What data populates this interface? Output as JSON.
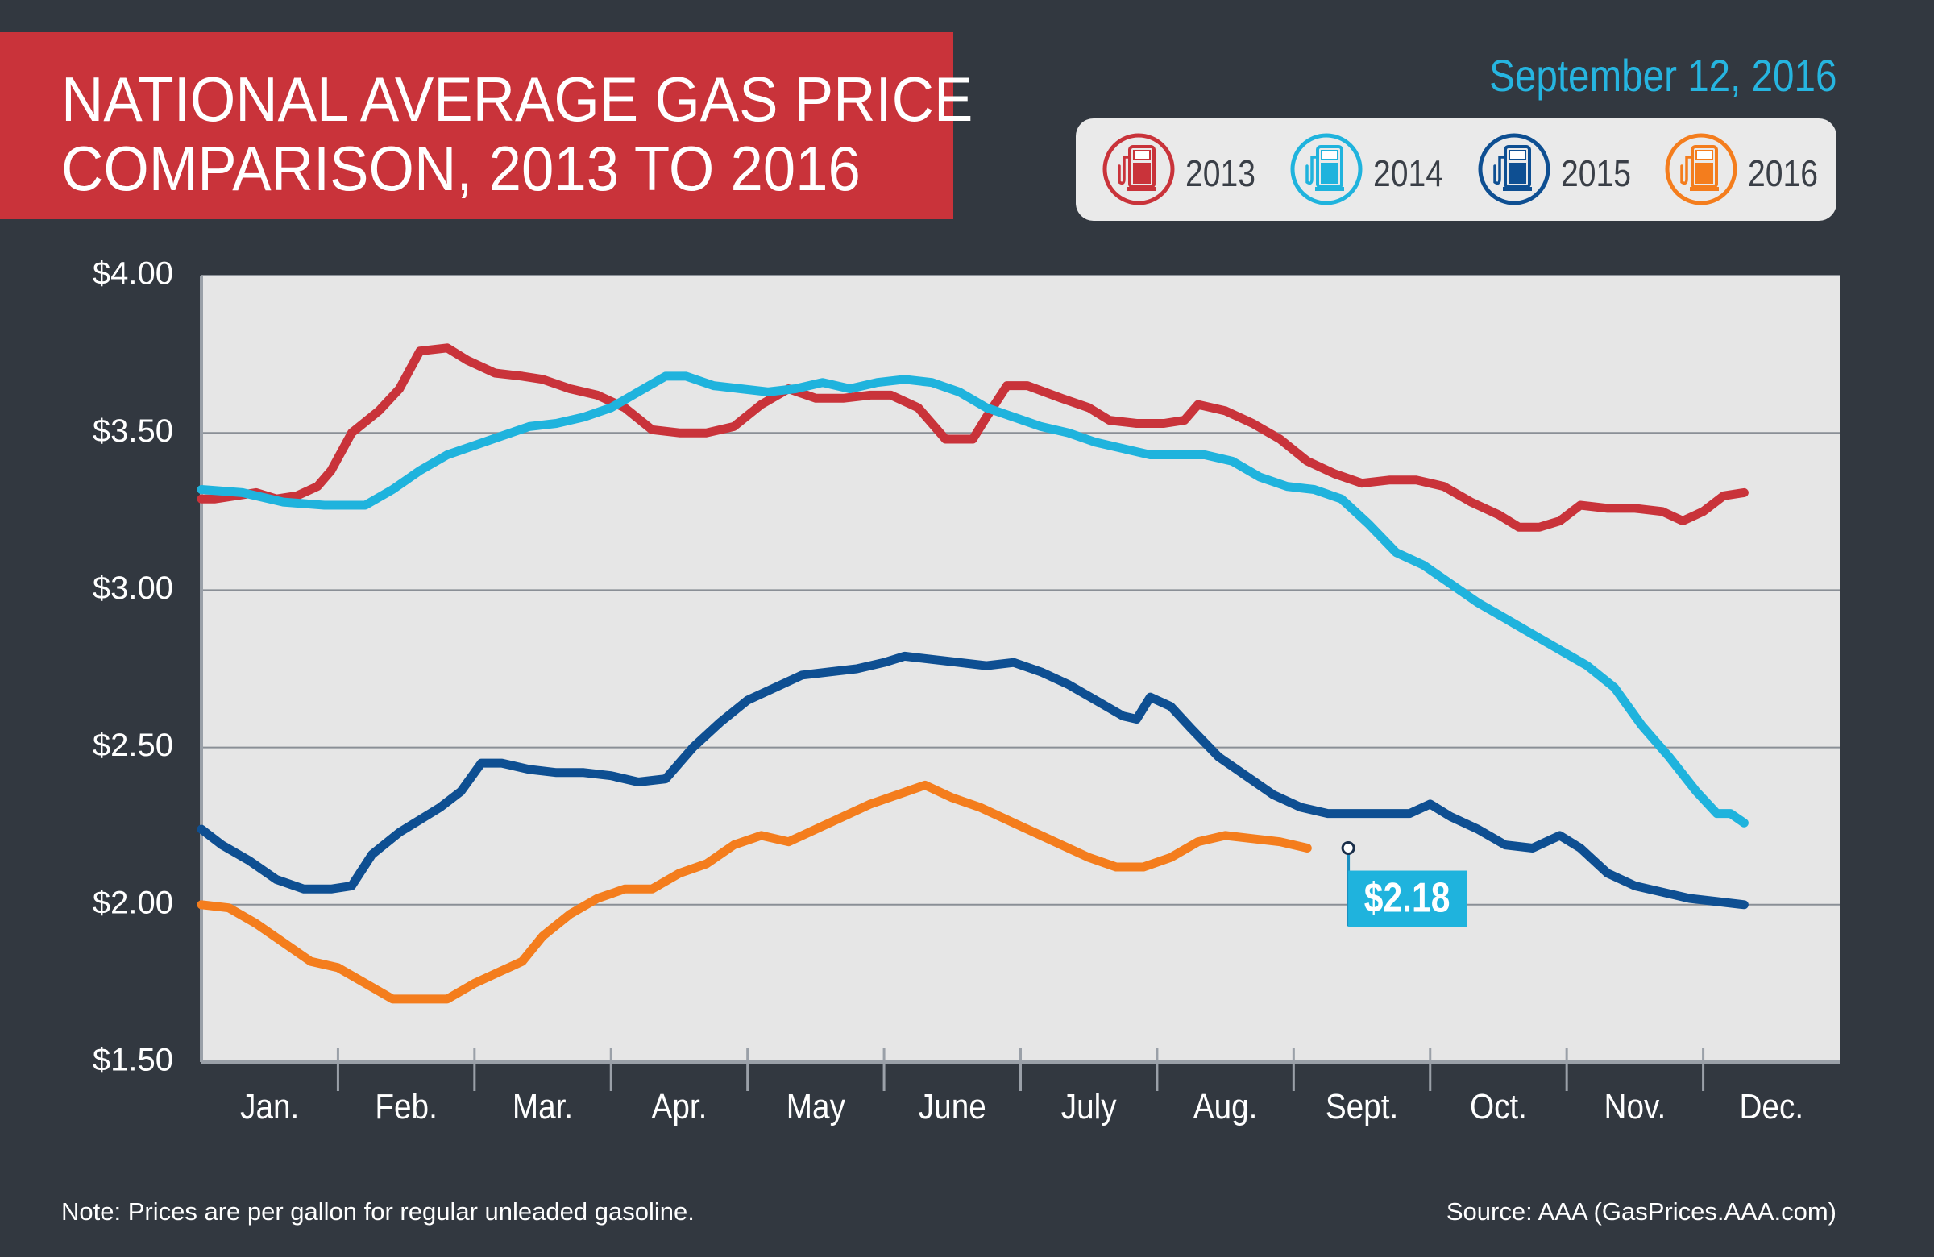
{
  "header": {
    "title_line1": "NATIONAL AVERAGE GAS PRICE",
    "title_line2": "COMPARISON, 2013 TO 2016",
    "date": "September 12, 2016"
  },
  "legend": [
    {
      "label": "2013",
      "icon": "gas-pump-icon",
      "color": "#c9333a"
    },
    {
      "label": "2014",
      "icon": "gas-pump-icon",
      "color": "#1fb3dd"
    },
    {
      "label": "2015",
      "icon": "gas-pump-icon",
      "color": "#0e4f92"
    },
    {
      "label": "2016",
      "icon": "gas-pump-icon",
      "color": "#f47d1d"
    }
  ],
  "chart_data": {
    "type": "line",
    "x_categories": [
      "Jan.",
      "Feb.",
      "Mar.",
      "Apr.",
      "May",
      "June",
      "July",
      "Aug.",
      "Sept.",
      "Oct.",
      "Nov.",
      "Dec."
    ],
    "y_ticks": [
      "$1.50",
      "$2.00",
      "$2.50",
      "$3.00",
      "$3.50",
      "$4.00"
    ],
    "ylim": [
      1.5,
      4.0
    ],
    "xlim": [
      0,
      12
    ],
    "grid": "horizontal",
    "callout": {
      "label": "$2.18",
      "series": "2016",
      "x": 8.4,
      "y": 2.18
    },
    "series": [
      {
        "name": "2013",
        "color": "#c9333a",
        "points": [
          [
            0,
            3.29
          ],
          [
            0.1,
            3.29
          ],
          [
            0.25,
            3.3
          ],
          [
            0.4,
            3.31
          ],
          [
            0.55,
            3.29
          ],
          [
            0.7,
            3.3
          ],
          [
            0.85,
            3.33
          ],
          [
            0.95,
            3.38
          ],
          [
            1.1,
            3.5
          ],
          [
            1.3,
            3.57
          ],
          [
            1.45,
            3.64
          ],
          [
            1.6,
            3.76
          ],
          [
            1.8,
            3.77
          ],
          [
            1.95,
            3.73
          ],
          [
            2.15,
            3.69
          ],
          [
            2.35,
            3.68
          ],
          [
            2.5,
            3.67
          ],
          [
            2.7,
            3.64
          ],
          [
            2.9,
            3.62
          ],
          [
            3.1,
            3.58
          ],
          [
            3.3,
            3.51
          ],
          [
            3.5,
            3.5
          ],
          [
            3.7,
            3.5
          ],
          [
            3.9,
            3.52
          ],
          [
            4.1,
            3.59
          ],
          [
            4.3,
            3.64
          ],
          [
            4.5,
            3.61
          ],
          [
            4.7,
            3.61
          ],
          [
            4.9,
            3.62
          ],
          [
            5.05,
            3.62
          ],
          [
            5.25,
            3.58
          ],
          [
            5.45,
            3.48
          ],
          [
            5.65,
            3.48
          ],
          [
            5.75,
            3.55
          ],
          [
            5.9,
            3.65
          ],
          [
            6.05,
            3.65
          ],
          [
            6.3,
            3.61
          ],
          [
            6.5,
            3.58
          ],
          [
            6.65,
            3.54
          ],
          [
            6.85,
            3.53
          ],
          [
            7.05,
            3.53
          ],
          [
            7.2,
            3.54
          ],
          [
            7.3,
            3.59
          ],
          [
            7.5,
            3.57
          ],
          [
            7.7,
            3.53
          ],
          [
            7.9,
            3.48
          ],
          [
            8.1,
            3.41
          ],
          [
            8.3,
            3.37
          ],
          [
            8.5,
            3.34
          ],
          [
            8.7,
            3.35
          ],
          [
            8.9,
            3.35
          ],
          [
            9.1,
            3.33
          ],
          [
            9.3,
            3.28
          ],
          [
            9.5,
            3.24
          ],
          [
            9.65,
            3.2
          ],
          [
            9.8,
            3.2
          ],
          [
            9.95,
            3.22
          ],
          [
            10.1,
            3.27
          ],
          [
            10.3,
            3.26
          ],
          [
            10.5,
            3.26
          ],
          [
            10.7,
            3.25
          ],
          [
            10.85,
            3.22
          ],
          [
            11.0,
            3.25
          ],
          [
            11.15,
            3.3
          ],
          [
            11.3,
            3.31
          ]
        ]
      },
      {
        "name": "2014",
        "color": "#1fb3dd",
        "points": [
          [
            0,
            3.32
          ],
          [
            0.3,
            3.31
          ],
          [
            0.6,
            3.28
          ],
          [
            0.9,
            3.27
          ],
          [
            1.2,
            3.27
          ],
          [
            1.4,
            3.32
          ],
          [
            1.6,
            3.38
          ],
          [
            1.8,
            3.43
          ],
          [
            2.0,
            3.46
          ],
          [
            2.2,
            3.49
          ],
          [
            2.4,
            3.52
          ],
          [
            2.6,
            3.53
          ],
          [
            2.8,
            3.55
          ],
          [
            3.0,
            3.58
          ],
          [
            3.2,
            3.63
          ],
          [
            3.4,
            3.68
          ],
          [
            3.55,
            3.68
          ],
          [
            3.75,
            3.65
          ],
          [
            3.95,
            3.64
          ],
          [
            4.15,
            3.63
          ],
          [
            4.35,
            3.64
          ],
          [
            4.55,
            3.66
          ],
          [
            4.75,
            3.64
          ],
          [
            4.95,
            3.66
          ],
          [
            5.15,
            3.67
          ],
          [
            5.35,
            3.66
          ],
          [
            5.55,
            3.63
          ],
          [
            5.75,
            3.58
          ],
          [
            5.95,
            3.55
          ],
          [
            6.15,
            3.52
          ],
          [
            6.35,
            3.5
          ],
          [
            6.55,
            3.47
          ],
          [
            6.75,
            3.45
          ],
          [
            6.95,
            3.43
          ],
          [
            7.15,
            3.43
          ],
          [
            7.35,
            3.43
          ],
          [
            7.55,
            3.41
          ],
          [
            7.75,
            3.36
          ],
          [
            7.95,
            3.33
          ],
          [
            8.15,
            3.32
          ],
          [
            8.35,
            3.29
          ],
          [
            8.55,
            3.21
          ],
          [
            8.75,
            3.12
          ],
          [
            8.95,
            3.08
          ],
          [
            9.15,
            3.02
          ],
          [
            9.35,
            2.96
          ],
          [
            9.55,
            2.91
          ],
          [
            9.75,
            2.86
          ],
          [
            9.95,
            2.81
          ],
          [
            10.15,
            2.76
          ],
          [
            10.35,
            2.69
          ],
          [
            10.55,
            2.57
          ],
          [
            10.75,
            2.47
          ],
          [
            10.95,
            2.36
          ],
          [
            11.1,
            2.29
          ],
          [
            11.2,
            2.29
          ],
          [
            11.3,
            2.26
          ]
        ]
      },
      {
        "name": "2015",
        "color": "#0e4f92",
        "points": [
          [
            0,
            2.24
          ],
          [
            0.15,
            2.19
          ],
          [
            0.35,
            2.14
          ],
          [
            0.55,
            2.08
          ],
          [
            0.75,
            2.05
          ],
          [
            0.95,
            2.05
          ],
          [
            1.1,
            2.06
          ],
          [
            1.25,
            2.16
          ],
          [
            1.45,
            2.23
          ],
          [
            1.6,
            2.27
          ],
          [
            1.75,
            2.31
          ],
          [
            1.9,
            2.36
          ],
          [
            2.05,
            2.45
          ],
          [
            2.2,
            2.45
          ],
          [
            2.4,
            2.43
          ],
          [
            2.6,
            2.42
          ],
          [
            2.8,
            2.42
          ],
          [
            3.0,
            2.41
          ],
          [
            3.2,
            2.39
          ],
          [
            3.4,
            2.4
          ],
          [
            3.6,
            2.5
          ],
          [
            3.8,
            2.58
          ],
          [
            4.0,
            2.65
          ],
          [
            4.2,
            2.69
          ],
          [
            4.4,
            2.73
          ],
          [
            4.6,
            2.74
          ],
          [
            4.8,
            2.75
          ],
          [
            5.0,
            2.77
          ],
          [
            5.15,
            2.79
          ],
          [
            5.35,
            2.78
          ],
          [
            5.55,
            2.77
          ],
          [
            5.75,
            2.76
          ],
          [
            5.95,
            2.77
          ],
          [
            6.15,
            2.74
          ],
          [
            6.35,
            2.7
          ],
          [
            6.55,
            2.65
          ],
          [
            6.75,
            2.6
          ],
          [
            6.85,
            2.59
          ],
          [
            6.95,
            2.66
          ],
          [
            7.1,
            2.63
          ],
          [
            7.25,
            2.56
          ],
          [
            7.45,
            2.47
          ],
          [
            7.65,
            2.41
          ],
          [
            7.85,
            2.35
          ],
          [
            8.05,
            2.31
          ],
          [
            8.25,
            2.29
          ],
          [
            8.45,
            2.29
          ],
          [
            8.65,
            2.29
          ],
          [
            8.85,
            2.29
          ],
          [
            9.0,
            2.32
          ],
          [
            9.15,
            2.28
          ],
          [
            9.35,
            2.24
          ],
          [
            9.55,
            2.19
          ],
          [
            9.75,
            2.18
          ],
          [
            9.95,
            2.22
          ],
          [
            10.1,
            2.18
          ],
          [
            10.3,
            2.1
          ],
          [
            10.5,
            2.06
          ],
          [
            10.7,
            2.04
          ],
          [
            10.9,
            2.02
          ],
          [
            11.1,
            2.01
          ],
          [
            11.3,
            2.0
          ]
        ]
      },
      {
        "name": "2016",
        "color": "#f47d1d",
        "points": [
          [
            0,
            2.0
          ],
          [
            0.2,
            1.99
          ],
          [
            0.4,
            1.94
          ],
          [
            0.6,
            1.88
          ],
          [
            0.8,
            1.82
          ],
          [
            1.0,
            1.8
          ],
          [
            1.2,
            1.75
          ],
          [
            1.4,
            1.7
          ],
          [
            1.6,
            1.7
          ],
          [
            1.8,
            1.7
          ],
          [
            2.0,
            1.75
          ],
          [
            2.2,
            1.79
          ],
          [
            2.35,
            1.82
          ],
          [
            2.5,
            1.9
          ],
          [
            2.7,
            1.97
          ],
          [
            2.9,
            2.02
          ],
          [
            3.1,
            2.05
          ],
          [
            3.3,
            2.05
          ],
          [
            3.5,
            2.1
          ],
          [
            3.7,
            2.13
          ],
          [
            3.9,
            2.19
          ],
          [
            4.1,
            2.22
          ],
          [
            4.3,
            2.2
          ],
          [
            4.5,
            2.24
          ],
          [
            4.7,
            2.28
          ],
          [
            4.9,
            2.32
          ],
          [
            5.1,
            2.35
          ],
          [
            5.3,
            2.38
          ],
          [
            5.5,
            2.34
          ],
          [
            5.7,
            2.31
          ],
          [
            5.9,
            2.27
          ],
          [
            6.1,
            2.23
          ],
          [
            6.3,
            2.19
          ],
          [
            6.5,
            2.15
          ],
          [
            6.7,
            2.12
          ],
          [
            6.9,
            2.12
          ],
          [
            7.1,
            2.15
          ],
          [
            7.3,
            2.2
          ],
          [
            7.5,
            2.22
          ],
          [
            7.7,
            2.21
          ],
          [
            7.9,
            2.2
          ],
          [
            8.1,
            2.18
          ]
        ]
      }
    ]
  },
  "footer": {
    "note": "Note: Prices are per gallon for regular unleaded gasoline.",
    "source": "Source: AAA (GasPrices.AAA.com)"
  }
}
